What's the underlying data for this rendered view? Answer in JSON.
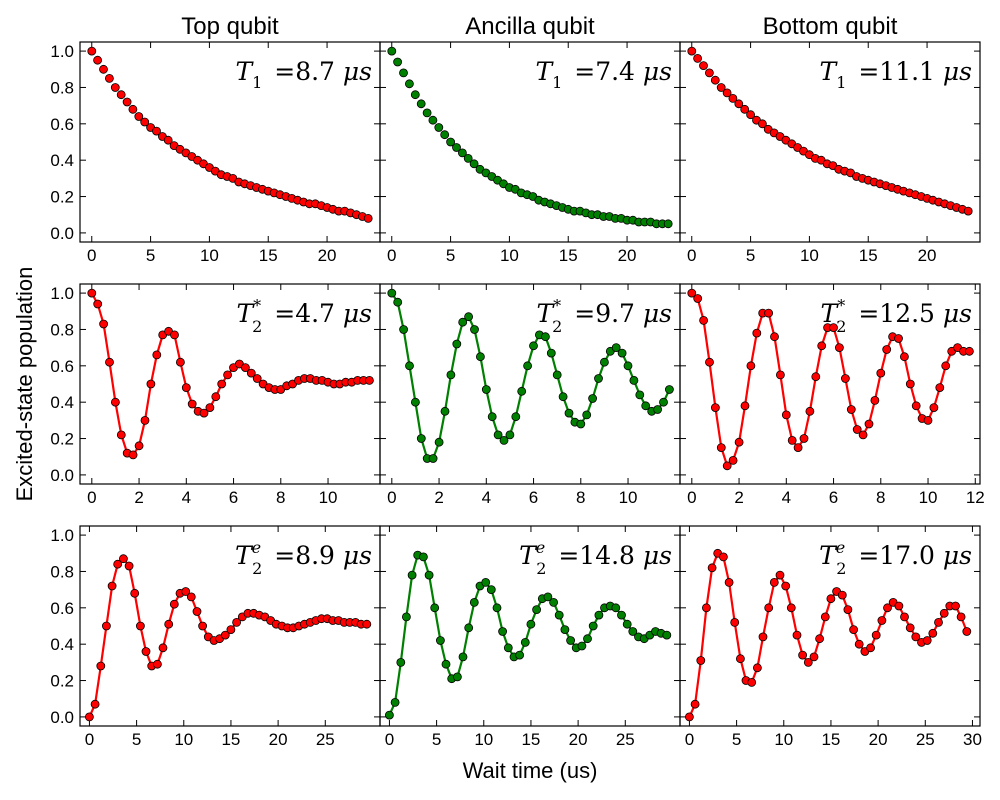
{
  "figure": {
    "column_titles": [
      "Top qubit",
      "Ancilla qubit",
      "Bottom qubit"
    ],
    "xlabel": "Wait time (us)",
    "ylabel": "Excited-state population",
    "colors": {
      "red": "#ff0000",
      "green": "#008000",
      "axis": "#000000"
    }
  },
  "chart_data": [
    {
      "type": "scatter",
      "row": 0,
      "col": 0,
      "marker_color": "#ff0000",
      "connect": false,
      "annotation": {
        "symbol": "T",
        "sub": "1",
        "sup": "",
        "value": "=8.7",
        "unit": "μs"
      },
      "xlim": [
        -1,
        24.5
      ],
      "ylim": [
        -0.05,
        1.05
      ],
      "xticks": [
        0,
        5,
        10,
        15,
        20
      ],
      "yticks": [
        0.0,
        0.2,
        0.4,
        0.6,
        0.8,
        1.0
      ],
      "x": [
        0.0,
        0.5,
        1.0,
        1.5,
        2.0,
        2.5,
        3.0,
        3.5,
        4.0,
        4.5,
        5.0,
        5.5,
        6.0,
        6.5,
        7.0,
        7.5,
        8.0,
        8.5,
        9.0,
        9.5,
        10.0,
        10.5,
        11.0,
        11.5,
        12.0,
        12.5,
        13.0,
        13.5,
        14.0,
        14.5,
        15.0,
        15.5,
        16.0,
        16.5,
        17.0,
        17.5,
        18.0,
        18.5,
        19.0,
        19.5,
        20.0,
        20.5,
        21.0,
        21.5,
        22.0,
        22.5,
        23.0,
        23.5
      ],
      "y": [
        1.0,
        0.95,
        0.9,
        0.85,
        0.8,
        0.76,
        0.72,
        0.68,
        0.64,
        0.61,
        0.58,
        0.56,
        0.53,
        0.51,
        0.48,
        0.46,
        0.44,
        0.42,
        0.4,
        0.38,
        0.36,
        0.34,
        0.32,
        0.31,
        0.3,
        0.28,
        0.27,
        0.26,
        0.25,
        0.24,
        0.23,
        0.22,
        0.21,
        0.2,
        0.19,
        0.18,
        0.17,
        0.16,
        0.16,
        0.15,
        0.14,
        0.13,
        0.12,
        0.12,
        0.11,
        0.1,
        0.09,
        0.08
      ]
    },
    {
      "type": "scatter",
      "row": 0,
      "col": 1,
      "marker_color": "#008000",
      "connect": false,
      "annotation": {
        "symbol": "T",
        "sub": "1",
        "sup": "",
        "value": "=7.4",
        "unit": "μs"
      },
      "xlim": [
        -1,
        24.5
      ],
      "ylim": [
        -0.05,
        1.05
      ],
      "xticks": [
        0,
        5,
        10,
        15,
        20
      ],
      "yticks": [
        0.0,
        0.2,
        0.4,
        0.6,
        0.8,
        1.0
      ],
      "x": [
        0.0,
        0.5,
        1.0,
        1.5,
        2.0,
        2.5,
        3.0,
        3.5,
        4.0,
        4.5,
        5.0,
        5.5,
        6.0,
        6.5,
        7.0,
        7.5,
        8.0,
        8.5,
        9.0,
        9.5,
        10.0,
        10.5,
        11.0,
        11.5,
        12.0,
        12.5,
        13.0,
        13.5,
        14.0,
        14.5,
        15.0,
        15.5,
        16.0,
        16.5,
        17.0,
        17.5,
        18.0,
        18.5,
        19.0,
        19.5,
        20.0,
        20.5,
        21.0,
        21.5,
        22.0,
        22.5,
        23.0,
        23.5
      ],
      "y": [
        1.0,
        0.94,
        0.88,
        0.82,
        0.76,
        0.71,
        0.66,
        0.62,
        0.58,
        0.54,
        0.5,
        0.47,
        0.44,
        0.41,
        0.38,
        0.35,
        0.33,
        0.31,
        0.29,
        0.27,
        0.25,
        0.24,
        0.22,
        0.21,
        0.2,
        0.18,
        0.17,
        0.16,
        0.15,
        0.14,
        0.13,
        0.12,
        0.12,
        0.11,
        0.1,
        0.1,
        0.09,
        0.09,
        0.08,
        0.08,
        0.07,
        0.07,
        0.06,
        0.06,
        0.06,
        0.05,
        0.05,
        0.05
      ]
    },
    {
      "type": "scatter",
      "row": 0,
      "col": 2,
      "marker_color": "#ff0000",
      "connect": false,
      "annotation": {
        "symbol": "T",
        "sub": "1",
        "sup": "",
        "value": "=11.1",
        "unit": "μs"
      },
      "xlim": [
        -1,
        24.5
      ],
      "ylim": [
        -0.05,
        1.05
      ],
      "xticks": [
        0,
        5,
        10,
        15,
        20
      ],
      "yticks": [
        0.0,
        0.2,
        0.4,
        0.6,
        0.8,
        1.0
      ],
      "x": [
        0.0,
        0.5,
        1.0,
        1.5,
        2.0,
        2.5,
        3.0,
        3.5,
        4.0,
        4.5,
        5.0,
        5.5,
        6.0,
        6.5,
        7.0,
        7.5,
        8.0,
        8.5,
        9.0,
        9.5,
        10.0,
        10.5,
        11.0,
        11.5,
        12.0,
        12.5,
        13.0,
        13.5,
        14.0,
        14.5,
        15.0,
        15.5,
        16.0,
        16.5,
        17.0,
        17.5,
        18.0,
        18.5,
        19.0,
        19.5,
        20.0,
        20.5,
        21.0,
        21.5,
        22.0,
        22.5,
        23.0,
        23.5
      ],
      "y": [
        1.0,
        0.96,
        0.92,
        0.88,
        0.84,
        0.8,
        0.77,
        0.74,
        0.71,
        0.68,
        0.65,
        0.62,
        0.6,
        0.57,
        0.55,
        0.53,
        0.51,
        0.49,
        0.47,
        0.45,
        0.43,
        0.41,
        0.4,
        0.38,
        0.37,
        0.35,
        0.34,
        0.33,
        0.31,
        0.3,
        0.29,
        0.28,
        0.27,
        0.26,
        0.25,
        0.24,
        0.23,
        0.22,
        0.21,
        0.2,
        0.19,
        0.18,
        0.17,
        0.16,
        0.15,
        0.14,
        0.13,
        0.12
      ]
    },
    {
      "type": "line",
      "row": 1,
      "col": 0,
      "marker_color": "#ff0000",
      "connect": true,
      "annotation": {
        "symbol": "T",
        "sub": "2",
        "sup": "*",
        "value": "=4.7",
        "unit": "μs"
      },
      "xlim": [
        -0.5,
        12.2
      ],
      "ylim": [
        -0.05,
        1.05
      ],
      "xticks": [
        0,
        2,
        4,
        6,
        8,
        10
      ],
      "yticks": [
        0.0,
        0.2,
        0.4,
        0.6,
        0.8,
        1.0
      ],
      "x": [
        0.0,
        0.25,
        0.5,
        0.75,
        1.0,
        1.25,
        1.5,
        1.75,
        2.0,
        2.25,
        2.5,
        2.75,
        3.0,
        3.25,
        3.5,
        3.75,
        4.0,
        4.25,
        4.5,
        4.75,
        5.0,
        5.25,
        5.5,
        5.75,
        6.0,
        6.25,
        6.5,
        6.75,
        7.0,
        7.25,
        7.5,
        7.75,
        8.0,
        8.25,
        8.5,
        8.75,
        9.0,
        9.25,
        9.5,
        9.75,
        10.0,
        10.25,
        10.5,
        10.75,
        11.0,
        11.25,
        11.5,
        11.75
      ],
      "y": [
        1.0,
        0.94,
        0.83,
        0.62,
        0.4,
        0.22,
        0.12,
        0.11,
        0.16,
        0.3,
        0.5,
        0.66,
        0.77,
        0.79,
        0.77,
        0.62,
        0.48,
        0.39,
        0.35,
        0.34,
        0.37,
        0.43,
        0.5,
        0.55,
        0.59,
        0.61,
        0.59,
        0.56,
        0.53,
        0.5,
        0.48,
        0.47,
        0.47,
        0.49,
        0.5,
        0.52,
        0.53,
        0.53,
        0.52,
        0.52,
        0.51,
        0.5,
        0.5,
        0.51,
        0.51,
        0.52,
        0.52,
        0.52
      ]
    },
    {
      "type": "line",
      "row": 1,
      "col": 1,
      "marker_color": "#008000",
      "connect": true,
      "annotation": {
        "symbol": "T",
        "sub": "2",
        "sup": "*",
        "value": "=9.7",
        "unit": "μs"
      },
      "xlim": [
        -0.5,
        12.2
      ],
      "ylim": [
        -0.05,
        1.05
      ],
      "xticks": [
        0,
        2,
        4,
        6,
        8,
        10
      ],
      "yticks": [
        0.0,
        0.2,
        0.4,
        0.6,
        0.8,
        1.0
      ],
      "x": [
        0.0,
        0.25,
        0.5,
        0.75,
        1.0,
        1.25,
        1.5,
        1.75,
        2.0,
        2.25,
        2.5,
        2.75,
        3.0,
        3.25,
        3.5,
        3.75,
        4.0,
        4.25,
        4.5,
        4.75,
        5.0,
        5.25,
        5.5,
        5.75,
        6.0,
        6.25,
        6.5,
        6.75,
        7.0,
        7.25,
        7.5,
        7.75,
        8.0,
        8.25,
        8.5,
        8.75,
        9.0,
        9.25,
        9.5,
        9.75,
        10.0,
        10.25,
        10.5,
        10.75,
        11.0,
        11.25,
        11.5,
        11.75
      ],
      "y": [
        1.0,
        0.95,
        0.8,
        0.6,
        0.4,
        0.2,
        0.09,
        0.09,
        0.18,
        0.35,
        0.55,
        0.72,
        0.84,
        0.87,
        0.8,
        0.65,
        0.47,
        0.32,
        0.22,
        0.19,
        0.22,
        0.32,
        0.46,
        0.6,
        0.71,
        0.77,
        0.76,
        0.67,
        0.55,
        0.43,
        0.34,
        0.29,
        0.28,
        0.33,
        0.42,
        0.53,
        0.62,
        0.68,
        0.7,
        0.67,
        0.6,
        0.52,
        0.44,
        0.38,
        0.35,
        0.36,
        0.4,
        0.47
      ]
    },
    {
      "type": "line",
      "row": 1,
      "col": 2,
      "marker_color": "#ff0000",
      "connect": true,
      "annotation": {
        "symbol": "T",
        "sub": "2",
        "sup": "*",
        "value": "=12.5",
        "unit": "μs"
      },
      "xlim": [
        -0.5,
        12.2
      ],
      "ylim": [
        -0.05,
        1.05
      ],
      "xticks": [
        0,
        2,
        4,
        6,
        8,
        10,
        12
      ],
      "yticks": [
        0.0,
        0.2,
        0.4,
        0.6,
        0.8,
        1.0
      ],
      "x": [
        0.0,
        0.25,
        0.5,
        0.75,
        1.0,
        1.25,
        1.5,
        1.75,
        2.0,
        2.25,
        2.5,
        2.75,
        3.0,
        3.25,
        3.5,
        3.75,
        4.0,
        4.25,
        4.5,
        4.75,
        5.0,
        5.25,
        5.5,
        5.75,
        6.0,
        6.25,
        6.5,
        6.75,
        7.0,
        7.25,
        7.5,
        7.75,
        8.0,
        8.25,
        8.5,
        8.75,
        9.0,
        9.25,
        9.5,
        9.75,
        10.0,
        10.25,
        10.5,
        10.75,
        11.0,
        11.25,
        11.5,
        11.75
      ],
      "y": [
        1.0,
        0.97,
        0.85,
        0.62,
        0.37,
        0.15,
        0.05,
        0.08,
        0.18,
        0.38,
        0.6,
        0.78,
        0.89,
        0.89,
        0.76,
        0.55,
        0.33,
        0.19,
        0.15,
        0.2,
        0.35,
        0.54,
        0.71,
        0.81,
        0.81,
        0.7,
        0.53,
        0.36,
        0.25,
        0.22,
        0.28,
        0.41,
        0.56,
        0.69,
        0.76,
        0.75,
        0.65,
        0.5,
        0.38,
        0.31,
        0.3,
        0.37,
        0.48,
        0.6,
        0.68,
        0.7,
        0.68,
        0.68
      ]
    },
    {
      "type": "line",
      "row": 2,
      "col": 0,
      "marker_color": "#ff0000",
      "connect": true,
      "annotation": {
        "symbol": "T",
        "sub": "2",
        "sup": "e",
        "value": "=8.9",
        "unit": "μs"
      },
      "xlim": [
        -1,
        30.8
      ],
      "ylim": [
        -0.05,
        1.05
      ],
      "xticks": [
        0,
        5,
        10,
        15,
        20,
        25
      ],
      "yticks": [
        0.0,
        0.2,
        0.4,
        0.6,
        0.8,
        1.0
      ],
      "x": [
        0.0,
        0.6,
        1.2,
        1.8,
        2.4,
        3.0,
        3.6,
        4.2,
        4.8,
        5.4,
        6.0,
        6.6,
        7.2,
        7.8,
        8.4,
        9.0,
        9.6,
        10.2,
        10.8,
        11.4,
        12.0,
        12.6,
        13.2,
        13.8,
        14.4,
        15.0,
        15.6,
        16.2,
        16.8,
        17.4,
        18.0,
        18.6,
        19.2,
        19.8,
        20.4,
        21.0,
        21.6,
        22.2,
        22.8,
        23.4,
        24.0,
        24.6,
        25.2,
        25.8,
        26.4,
        27.0,
        27.6,
        28.2,
        28.8,
        29.4
      ],
      "y": [
        0.0,
        0.07,
        0.28,
        0.5,
        0.72,
        0.84,
        0.87,
        0.83,
        0.68,
        0.5,
        0.36,
        0.28,
        0.29,
        0.38,
        0.51,
        0.62,
        0.68,
        0.69,
        0.66,
        0.58,
        0.5,
        0.44,
        0.42,
        0.43,
        0.45,
        0.48,
        0.52,
        0.55,
        0.57,
        0.57,
        0.56,
        0.55,
        0.53,
        0.51,
        0.5,
        0.49,
        0.49,
        0.5,
        0.51,
        0.52,
        0.53,
        0.54,
        0.54,
        0.53,
        0.53,
        0.52,
        0.52,
        0.52,
        0.51,
        0.51
      ]
    },
    {
      "type": "line",
      "row": 2,
      "col": 1,
      "marker_color": "#008000",
      "connect": true,
      "annotation": {
        "symbol": "T",
        "sub": "2",
        "sup": "e",
        "value": "=14.8",
        "unit": "μs"
      },
      "xlim": [
        -1,
        30.8
      ],
      "ylim": [
        -0.05,
        1.05
      ],
      "xticks": [
        0,
        5,
        10,
        15,
        20,
        25
      ],
      "yticks": [
        0.0,
        0.2,
        0.4,
        0.6,
        0.8,
        1.0
      ],
      "x": [
        0.0,
        0.6,
        1.2,
        1.8,
        2.4,
        3.0,
        3.6,
        4.2,
        4.8,
        5.4,
        6.0,
        6.6,
        7.2,
        7.8,
        8.4,
        9.0,
        9.6,
        10.2,
        10.8,
        11.4,
        12.0,
        12.6,
        13.2,
        13.8,
        14.4,
        15.0,
        15.6,
        16.2,
        16.8,
        17.4,
        18.0,
        18.6,
        19.2,
        19.8,
        20.4,
        21.0,
        21.6,
        22.2,
        22.8,
        23.4,
        24.0,
        24.6,
        25.2,
        25.8,
        26.4,
        27.0,
        27.6,
        28.2,
        28.8,
        29.4
      ],
      "y": [
        0.01,
        0.08,
        0.3,
        0.55,
        0.78,
        0.89,
        0.88,
        0.78,
        0.6,
        0.42,
        0.29,
        0.21,
        0.22,
        0.33,
        0.49,
        0.63,
        0.72,
        0.74,
        0.7,
        0.6,
        0.47,
        0.38,
        0.33,
        0.34,
        0.41,
        0.51,
        0.59,
        0.65,
        0.66,
        0.63,
        0.56,
        0.48,
        0.42,
        0.38,
        0.39,
        0.43,
        0.5,
        0.56,
        0.6,
        0.61,
        0.6,
        0.56,
        0.51,
        0.47,
        0.44,
        0.43,
        0.45,
        0.47,
        0.46,
        0.45
      ]
    },
    {
      "type": "line",
      "row": 2,
      "col": 2,
      "marker_color": "#ff0000",
      "connect": true,
      "annotation": {
        "symbol": "T",
        "sub": "2",
        "sup": "e",
        "value": "=17.0",
        "unit": "μs"
      },
      "xlim": [
        -1,
        30.8
      ],
      "ylim": [
        -0.05,
        1.05
      ],
      "xticks": [
        0,
        5,
        10,
        15,
        20,
        25,
        30
      ],
      "yticks": [
        0.0,
        0.2,
        0.4,
        0.6,
        0.8,
        1.0
      ],
      "x": [
        0.0,
        0.6,
        1.2,
        1.8,
        2.4,
        3.0,
        3.6,
        4.2,
        4.8,
        5.4,
        6.0,
        6.6,
        7.2,
        7.8,
        8.4,
        9.0,
        9.6,
        10.2,
        10.8,
        11.4,
        12.0,
        12.6,
        13.2,
        13.8,
        14.4,
        15.0,
        15.6,
        16.2,
        16.8,
        17.4,
        18.0,
        18.6,
        19.2,
        19.8,
        20.4,
        21.0,
        21.6,
        22.2,
        22.8,
        23.4,
        24.0,
        24.6,
        25.2,
        25.8,
        26.4,
        27.0,
        27.6,
        28.2,
        28.8,
        29.4
      ],
      "y": [
        0.0,
        0.07,
        0.31,
        0.6,
        0.82,
        0.9,
        0.88,
        0.74,
        0.52,
        0.32,
        0.2,
        0.19,
        0.27,
        0.44,
        0.6,
        0.74,
        0.78,
        0.72,
        0.6,
        0.45,
        0.34,
        0.3,
        0.33,
        0.43,
        0.55,
        0.65,
        0.69,
        0.67,
        0.59,
        0.48,
        0.4,
        0.36,
        0.38,
        0.45,
        0.53,
        0.6,
        0.63,
        0.61,
        0.55,
        0.49,
        0.44,
        0.41,
        0.42,
        0.46,
        0.52,
        0.57,
        0.61,
        0.61,
        0.55,
        0.47
      ]
    }
  ]
}
